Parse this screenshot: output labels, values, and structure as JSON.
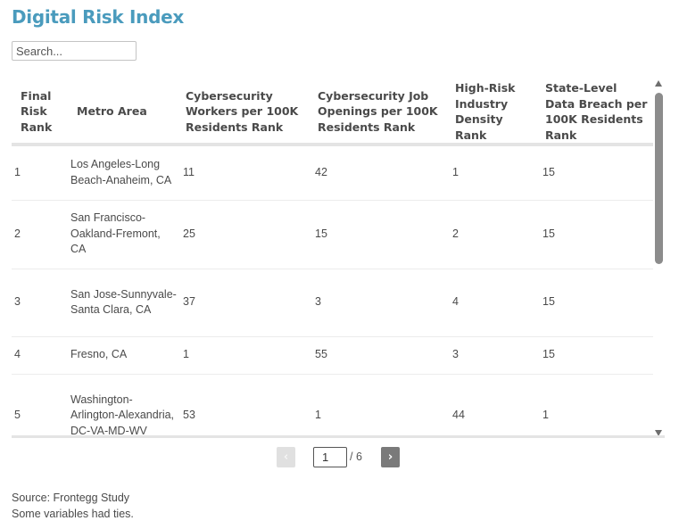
{
  "title": "Digital Risk Index",
  "search": {
    "placeholder": "Search..."
  },
  "table": {
    "headers": [
      "Final Risk Rank",
      "Metro Area",
      "Cybersecurity Workers per 100K Residents Rank",
      "Cybersecurity Job Openings per 100K Residents Rank",
      "High-Risk Industry Density Rank",
      "State-Level Data Breach per 100K Residents Rank"
    ],
    "rows": [
      [
        "1",
        "Los Angeles-Long Beach-Anaheim, CA",
        "11",
        "42",
        "1",
        "15"
      ],
      [
        "2",
        "San Francisco-Oakland-Fremont, CA",
        "25",
        "15",
        "2",
        "15"
      ],
      [
        "3",
        "San Jose-Sunnyvale-Santa Clara, CA",
        "37",
        "3",
        "4",
        "15"
      ],
      [
        "4",
        "Fresno, CA",
        "1",
        "55",
        "3",
        "15"
      ],
      [
        "5",
        "Washington-Arlington-Alexandria, DC-VA-MD-WV",
        "53",
        "1",
        "44",
        "1"
      ]
    ]
  },
  "pagination": {
    "prev_label": "‹",
    "next_label": "›",
    "current_page": "1",
    "total_label": "/ 6"
  },
  "notes": {
    "source": "Source: Frontegg Study",
    "note": "Some variables had ties."
  }
}
